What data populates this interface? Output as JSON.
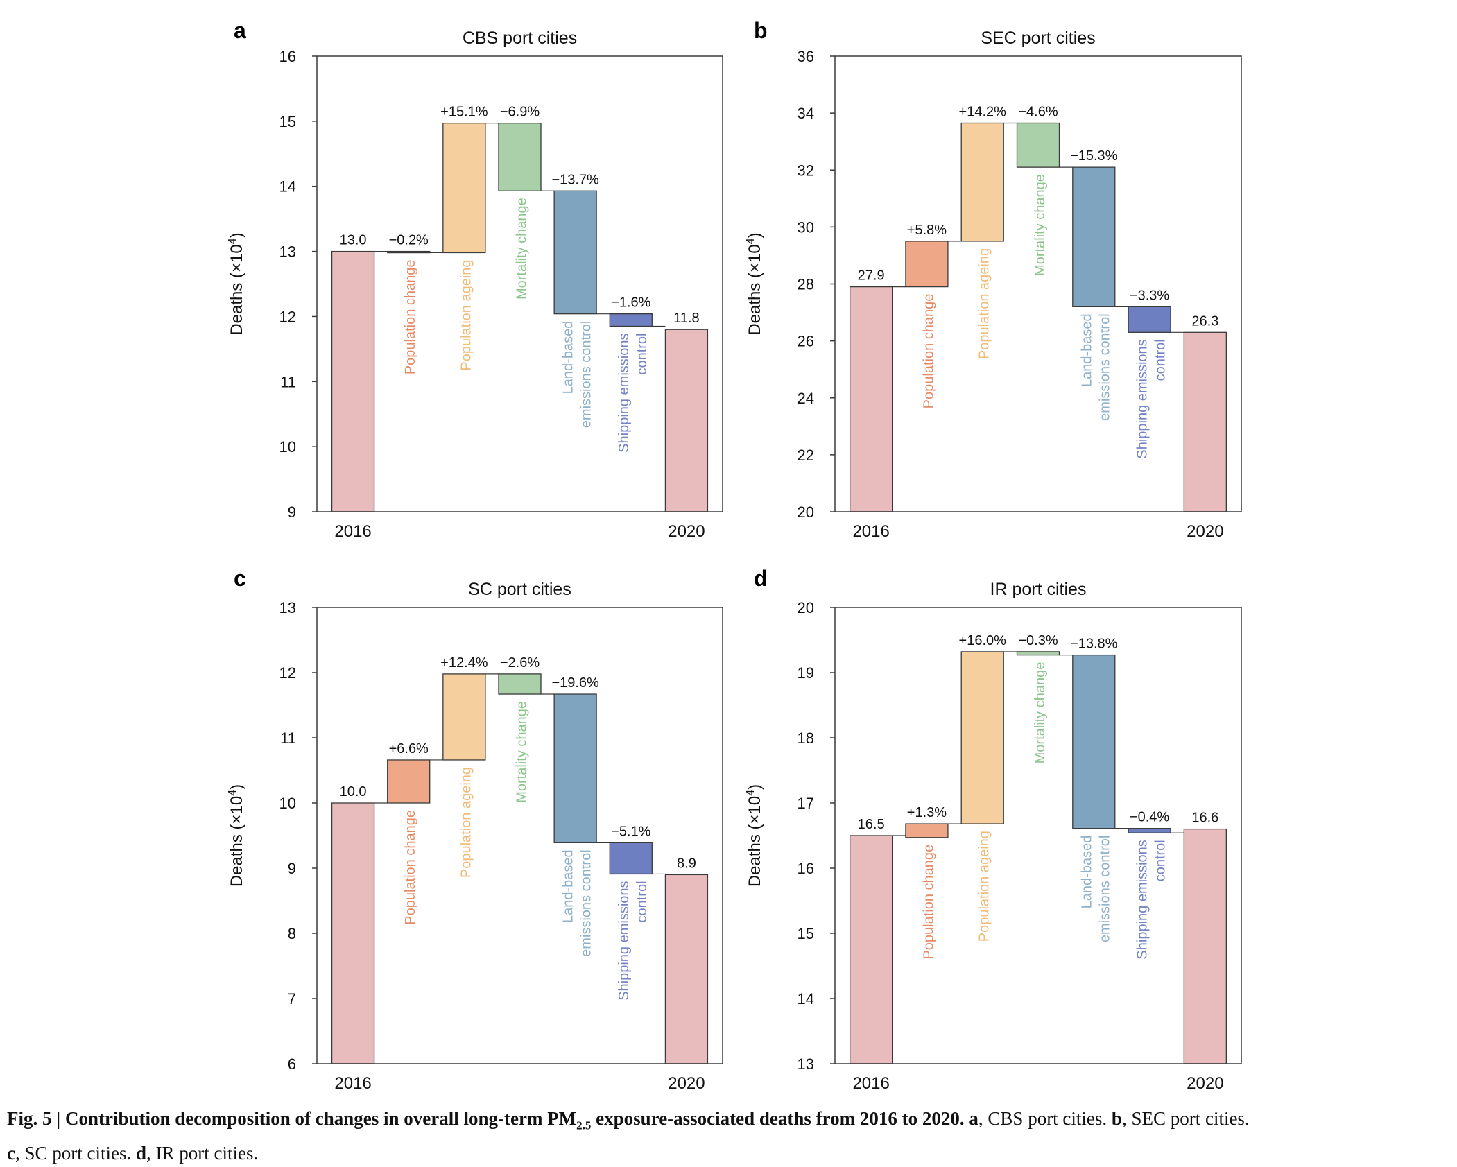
{
  "chart_data": [
    {
      "panel": "a",
      "type": "bar",
      "title": "CBS port cities",
      "ylabel_base": "Deaths (×10",
      "ylabel_exp": "4",
      "ylabel_close": ")",
      "ylim": [
        9,
        16
      ],
      "yticks": [
        9,
        10,
        11,
        12,
        13,
        14,
        15,
        16
      ],
      "start": {
        "label": "2016",
        "value": 13.0,
        "text": "13.0"
      },
      "end": {
        "label": "2020",
        "value": 11.8,
        "text": "11.8"
      },
      "steps": [
        {
          "name": "Population change",
          "from": 13.0,
          "to": 12.98,
          "text": "−0.2%"
        },
        {
          "name": "Population ageing",
          "from": 12.98,
          "to": 14.97,
          "text": "+15.1%"
        },
        {
          "name": "Mortality change",
          "from": 14.97,
          "to": 13.93,
          "text": "−6.9%"
        },
        {
          "name": "Land-based emissions control",
          "from": 13.93,
          "to": 12.04,
          "text": "−13.7%"
        },
        {
          "name": "Shipping emissions control",
          "from": 12.04,
          "to": 11.85,
          "text": "−1.6%"
        }
      ]
    },
    {
      "panel": "b",
      "type": "bar",
      "title": "SEC port cities",
      "ylabel_base": "Deaths (×10",
      "ylabel_exp": "4",
      "ylabel_close": ")",
      "ylim": [
        20,
        36
      ],
      "yticks": [
        20,
        22,
        24,
        26,
        28,
        30,
        32,
        34,
        36
      ],
      "start": {
        "label": "2016",
        "value": 27.9,
        "text": "27.9"
      },
      "end": {
        "label": "2020",
        "value": 26.3,
        "text": "26.3"
      },
      "steps": [
        {
          "name": "Population change",
          "from": 27.9,
          "to": 29.5,
          "text": "+5.8%"
        },
        {
          "name": "Population ageing",
          "from": 29.5,
          "to": 33.65,
          "text": "+14.2%"
        },
        {
          "name": "Mortality change",
          "from": 33.65,
          "to": 32.1,
          "text": "−4.6%"
        },
        {
          "name": "Land-based emissions control",
          "from": 32.1,
          "to": 27.2,
          "text": "−15.3%"
        },
        {
          "name": "Shipping emissions control",
          "from": 27.2,
          "to": 26.3,
          "text": "−3.3%"
        }
      ]
    },
    {
      "panel": "c",
      "type": "bar",
      "title": "SC port cities",
      "ylabel_base": "Deaths (×10",
      "ylabel_exp": "4",
      "ylabel_close": ")",
      "ylim": [
        6,
        13
      ],
      "yticks": [
        6,
        7,
        8,
        9,
        10,
        11,
        12,
        13
      ],
      "start": {
        "label": "2016",
        "value": 10.0,
        "text": "10.0"
      },
      "end": {
        "label": "2020",
        "value": 8.9,
        "text": "8.9"
      },
      "steps": [
        {
          "name": "Population change",
          "from": 10.0,
          "to": 10.66,
          "text": "+6.6%"
        },
        {
          "name": "Population ageing",
          "from": 10.66,
          "to": 11.98,
          "text": "+12.4%"
        },
        {
          "name": "Mortality change",
          "from": 11.98,
          "to": 11.67,
          "text": "−2.6%"
        },
        {
          "name": "Land-based emissions control",
          "from": 11.67,
          "to": 9.39,
          "text": "−19.6%"
        },
        {
          "name": "Shipping emissions control",
          "from": 9.39,
          "to": 8.91,
          "text": "−5.1%"
        }
      ]
    },
    {
      "panel": "d",
      "type": "bar",
      "title": "IR port cities",
      "ylabel_base": "Deaths (×10",
      "ylabel_exp": "4",
      "ylabel_close": ")",
      "ylim": [
        13,
        20
      ],
      "yticks": [
        13,
        14,
        15,
        16,
        17,
        18,
        19,
        20
      ],
      "start": {
        "label": "2016",
        "value": 16.5,
        "text": "16.5"
      },
      "end": {
        "label": "2020",
        "value": 16.6,
        "text": "16.6"
      },
      "steps": [
        {
          "name": "Population change",
          "from": 16.47,
          "to": 16.68,
          "text": "+1.3%"
        },
        {
          "name": "Population ageing",
          "from": 16.68,
          "to": 19.32,
          "text": "+16.0%"
        },
        {
          "name": "Mortality change",
          "from": 19.32,
          "to": 19.27,
          "text": "−0.3%"
        },
        {
          "name": "Land-based emissions control",
          "from": 19.27,
          "to": 16.61,
          "text": "−13.8%"
        },
        {
          "name": "Shipping emissions control",
          "from": 16.61,
          "to": 16.54,
          "text": "−0.4%"
        }
      ]
    }
  ],
  "categories": {
    "pop_change": {
      "lines": [
        "Population change"
      ]
    },
    "pop_ageing": {
      "lines": [
        "Population ageing"
      ]
    },
    "mortality": {
      "lines": [
        "Mortality change"
      ]
    },
    "land": {
      "lines": [
        "Land-based",
        "emissions control"
      ]
    },
    "shipping": {
      "lines": [
        "Shipping emissions",
        "control"
      ]
    }
  },
  "colors": {
    "year_fill": "#e8bcbc",
    "pop_change_fill": "#eea888",
    "pop_ageing_fill": "#f5d09e",
    "mortality_fill": "#a9d0a8",
    "land_fill": "#7ea4c0",
    "shipping_fill": "#6d7fc0",
    "pop_change_text": "#e58a64",
    "pop_ageing_text": "#efbc7a",
    "mortality_text": "#8cc48b",
    "land_text": "#8fb1c9",
    "shipping_text": "#7383c4",
    "edge": "#3a3a3a"
  },
  "caption": {
    "fig_label": "Fig. 5 | ",
    "bold_pre": "Contribution decomposition of changes in overall long-term PM",
    "bold_sub": "2.5",
    "bold_post": " exposure-associated deaths from 2016 to 2020.",
    "a_letter": "a",
    "a_text": ", CBS port cities. ",
    "b_letter": "b",
    "b_text": ", SEC port cities. ",
    "c_letter": "c",
    "c_text": ", SC port cities. ",
    "d_letter": "d",
    "d_text": ", IR port cities."
  }
}
